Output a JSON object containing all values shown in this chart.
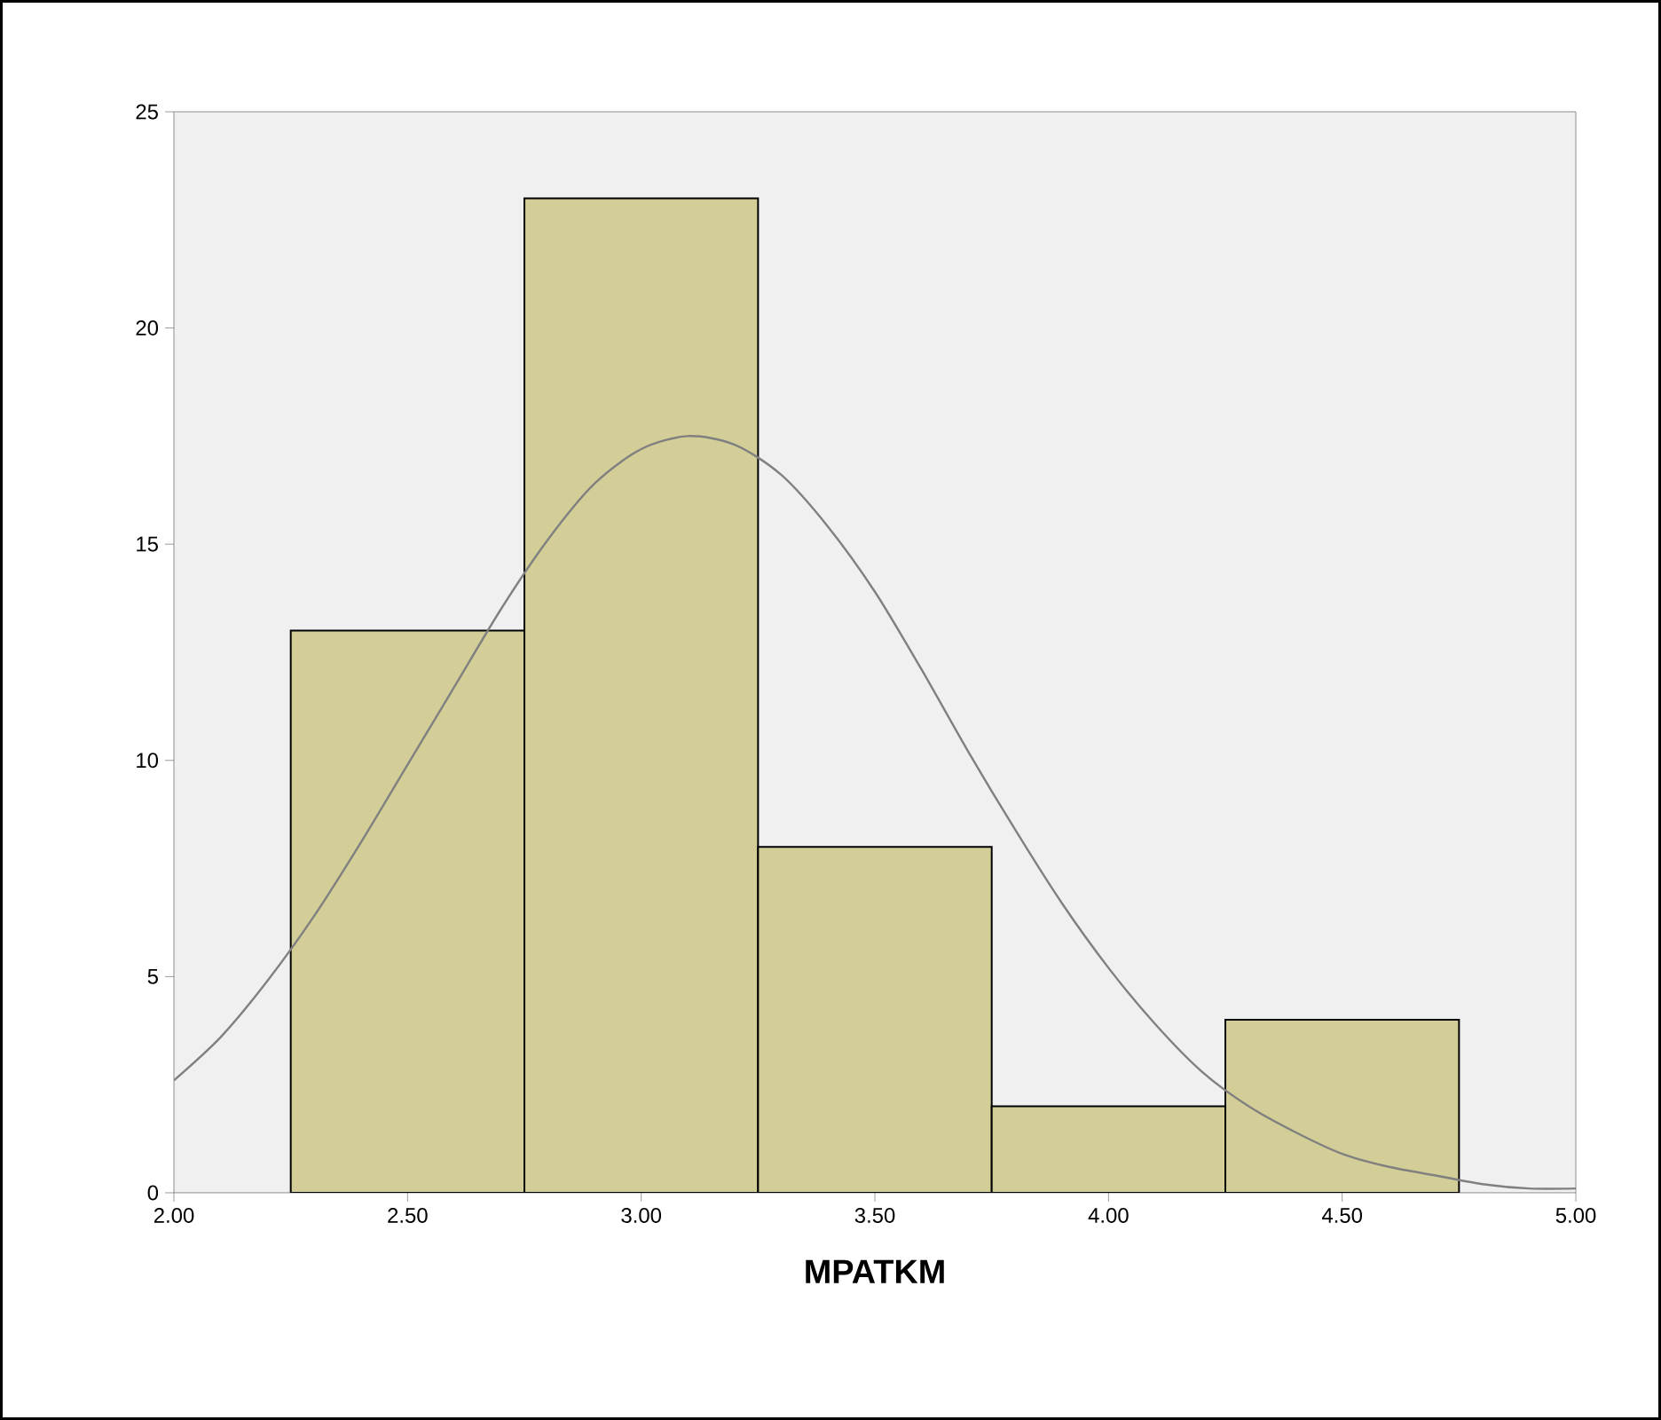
{
  "chart_data": {
    "type": "histogram",
    "xlabel": "MPATKM",
    "color": "#d3ce97",
    "bins": [
      2.25,
      2.75,
      3.25,
      3.75,
      4.25,
      4.75
    ],
    "values": [
      13,
      23,
      8,
      2,
      4
    ],
    "series": [
      {
        "type": "line",
        "color": "#808080",
        "x": [
          2.0,
          2.1,
          2.2,
          2.3,
          2.4,
          2.5,
          2.6,
          2.7,
          2.8,
          2.9,
          3.0,
          3.1,
          3.2,
          3.3,
          3.4,
          3.5,
          3.6,
          3.7,
          3.8,
          3.9,
          4.0,
          4.1,
          4.2,
          4.3,
          4.4,
          4.5,
          4.6,
          4.7,
          4.8,
          4.9,
          5.0
        ],
        "values": [
          2.6,
          3.6,
          4.9,
          6.4,
          8.1,
          9.9,
          11.7,
          13.5,
          15.1,
          16.4,
          17.2,
          17.5,
          17.3,
          16.6,
          15.4,
          13.9,
          12.1,
          10.2,
          8.4,
          6.7,
          5.2,
          3.9,
          2.8,
          2.0,
          1.4,
          0.9,
          0.6,
          0.4,
          0.2,
          0.1,
          0.1
        ]
      }
    ],
    "xlim": [
      2.0,
      5.0
    ],
    "xticks": [
      {
        "value": 2.0,
        "label": "2.00"
      },
      {
        "value": 2.5,
        "label": "2.50"
      },
      {
        "value": 3.0,
        "label": "3.00"
      },
      {
        "value": 3.5,
        "label": "3.50"
      },
      {
        "value": 4.0,
        "label": "4.00"
      },
      {
        "value": 4.5,
        "label": "4.50"
      },
      {
        "value": 5.0,
        "label": "5.00"
      }
    ],
    "ylim": [
      0,
      25
    ],
    "yticks": [
      0,
      5,
      10,
      15,
      20,
      25
    ]
  }
}
